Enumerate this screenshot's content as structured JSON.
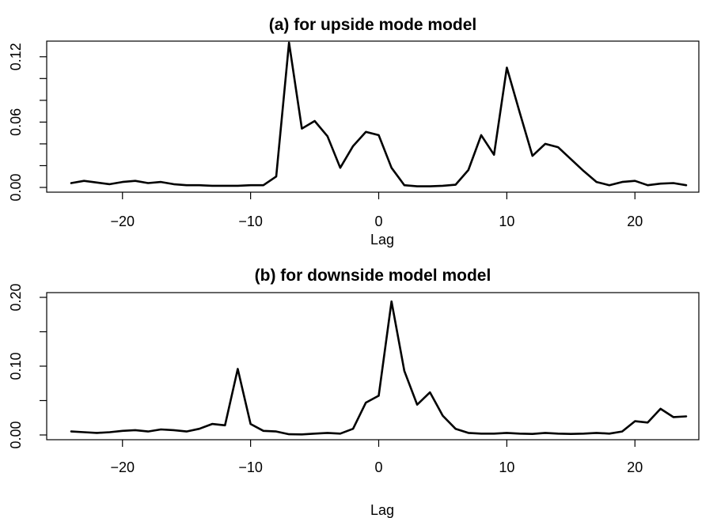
{
  "chart_data": [
    {
      "type": "line",
      "title": "(a) for upside mode model",
      "xlabel": "Lag",
      "ylabel": "",
      "xlim": [
        -24,
        24
      ],
      "ylim": [
        0,
        0.13
      ],
      "xticks": [
        -20,
        -10,
        0,
        10,
        20
      ],
      "yticks": [
        0.0,
        0.06,
        0.12
      ],
      "ytick_labels": [
        "0.00",
        "0.06",
        "0.12"
      ],
      "minor_yticks": [
        0.0,
        0.02,
        0.04,
        0.06,
        0.08,
        0.1,
        0.12
      ],
      "grid": false,
      "series": [
        {
          "x": [
            -24,
            -23,
            -22,
            -21,
            -20,
            -19,
            -18,
            -17,
            -16,
            -15,
            -14,
            -13,
            -12,
            -11,
            -10,
            -9,
            -8,
            -7,
            -6,
            -5,
            -4,
            -3,
            -2,
            -1,
            0,
            1,
            2,
            3,
            4,
            5,
            6,
            7,
            8,
            9,
            10,
            11,
            12,
            13,
            14,
            15,
            16,
            17,
            18,
            19,
            20,
            21,
            22,
            23,
            24
          ],
          "values": [
            0.004,
            0.006,
            0.0045,
            0.003,
            0.005,
            0.006,
            0.004,
            0.005,
            0.003,
            0.002,
            0.002,
            0.0015,
            0.0015,
            0.0015,
            0.002,
            0.002,
            0.01,
            0.133,
            0.054,
            0.061,
            0.047,
            0.018,
            0.038,
            0.051,
            0.048,
            0.018,
            0.002,
            0.001,
            0.001,
            0.0015,
            0.0025,
            0.016,
            0.048,
            0.03,
            0.11,
            0.069,
            0.029,
            0.04,
            0.037,
            0.026,
            0.015,
            0.005,
            0.002,
            0.005,
            0.006,
            0.002,
            0.0035,
            0.004,
            0.002
          ]
        }
      ]
    },
    {
      "type": "line",
      "title": "(b) for downside model model",
      "xlabel": "Lag",
      "ylabel": "",
      "xlim": [
        -24,
        24
      ],
      "ylim": [
        0,
        0.2
      ],
      "xticks": [
        -20,
        -10,
        0,
        10,
        20
      ],
      "yticks": [
        0.0,
        0.1,
        0.2
      ],
      "ytick_labels": [
        "0.00",
        "0.10",
        "0.20"
      ],
      "minor_yticks": [
        0.0,
        0.05,
        0.1,
        0.15,
        0.2
      ],
      "grid": false,
      "series": [
        {
          "x": [
            -24,
            -23,
            -22,
            -21,
            -20,
            -19,
            -18,
            -17,
            -16,
            -15,
            -14,
            -13,
            -12,
            -11,
            -10,
            -9,
            -8,
            -7,
            -6,
            -5,
            -4,
            -3,
            -2,
            -1,
            0,
            1,
            2,
            3,
            4,
            5,
            6,
            7,
            8,
            9,
            10,
            11,
            12,
            13,
            14,
            15,
            16,
            17,
            18,
            19,
            20,
            21,
            22,
            23,
            24
          ],
          "values": [
            0.005,
            0.004,
            0.003,
            0.004,
            0.006,
            0.007,
            0.005,
            0.008,
            0.007,
            0.005,
            0.009,
            0.016,
            0.014,
            0.096,
            0.016,
            0.006,
            0.005,
            0.001,
            0.0008,
            0.002,
            0.003,
            0.002,
            0.009,
            0.047,
            0.057,
            0.194,
            0.093,
            0.044,
            0.062,
            0.028,
            0.009,
            0.003,
            0.002,
            0.002,
            0.003,
            0.002,
            0.0015,
            0.003,
            0.002,
            0.0015,
            0.002,
            0.003,
            0.002,
            0.005,
            0.02,
            0.018,
            0.038,
            0.026,
            0.027
          ]
        }
      ]
    }
  ]
}
